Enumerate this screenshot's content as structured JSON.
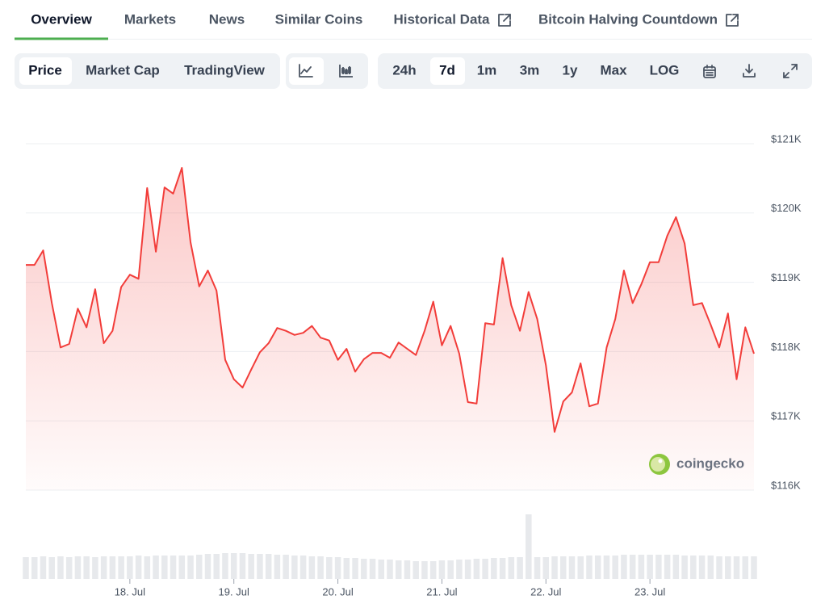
{
  "tabs": [
    "Overview",
    "Markets",
    "News",
    "Similar Coins",
    "Historical Data",
    "Bitcoin Halving Countdown"
  ],
  "view_buttons": [
    "Price",
    "Market Cap",
    "TradingView"
  ],
  "range_buttons": [
    "24h",
    "7d",
    "1m",
    "3m",
    "1y",
    "Max",
    "LOG"
  ],
  "watermark": "coingecko",
  "chart_data": {
    "type": "line",
    "color": "#f23d3a",
    "fill": true,
    "grid": true,
    "categories": [
      null,
      null,
      null,
      null,
      null,
      null,
      null,
      null,
      null,
      null,
      null,
      null,
      "18. Jul",
      null,
      null,
      null,
      null,
      null,
      null,
      null,
      null,
      null,
      null,
      null,
      "19. Jul",
      null,
      null,
      null,
      null,
      null,
      null,
      null,
      null,
      null,
      null,
      null,
      "20. Jul",
      null,
      null,
      null,
      null,
      null,
      null,
      null,
      null,
      null,
      null,
      null,
      "21. Jul",
      null,
      null,
      null,
      null,
      null,
      null,
      null,
      null,
      null,
      null,
      null,
      "22. Jul",
      null,
      null,
      null,
      null,
      null,
      null,
      null,
      null,
      null,
      null,
      null,
      "23. Jul",
      null,
      null,
      null,
      null,
      null,
      null,
      null,
      null,
      null,
      null,
      null,
      null
    ],
    "values": [
      119250,
      119250,
      119460,
      118700,
      118060,
      118110,
      118620,
      118350,
      118900,
      118120,
      118300,
      118930,
      119110,
      119050,
      120360,
      119440,
      120370,
      120280,
      120650,
      119580,
      118940,
      119170,
      118880,
      117880,
      117600,
      117480,
      117740,
      117990,
      118120,
      118340,
      118300,
      118240,
      118270,
      118370,
      118200,
      118160,
      117880,
      118040,
      117710,
      117890,
      117980,
      117980,
      117910,
      118130,
      118040,
      117950,
      118300,
      118720,
      118090,
      118370,
      117970,
      117270,
      117250,
      118410,
      118390,
      119350,
      118670,
      118300,
      118860,
      118470,
      117800,
      116840,
      117280,
      117410,
      117830,
      117210,
      117250,
      118060,
      118470,
      119170,
      118700,
      118970,
      119290,
      119290,
      119670,
      119940,
      119560,
      118670,
      118700,
      118390,
      118060,
      118550,
      117600,
      118350,
      117970
    ],
    "volume": [
      27,
      27,
      28,
      27,
      28,
      27,
      28,
      28,
      27,
      28,
      28,
      28,
      28,
      29,
      28,
      29,
      29,
      29,
      29,
      29,
      30,
      31,
      31,
      32,
      32,
      32,
      31,
      31,
      31,
      30,
      30,
      29,
      29,
      28,
      28,
      27,
      27,
      26,
      26,
      25,
      25,
      24,
      24,
      23,
      23,
      22,
      22,
      22,
      23,
      23,
      24,
      24,
      25,
      25,
      26,
      26,
      27,
      27,
      80,
      27,
      27,
      28,
      28,
      28,
      28,
      29,
      29,
      29,
      29,
      30,
      30,
      30,
      30,
      30,
      30,
      30,
      29,
      29,
      29,
      29,
      28,
      28,
      28,
      28,
      28
    ],
    "volume_color": "#e7e9ec",
    "ylim": [
      116000,
      121000
    ],
    "yticks": [
      {
        "value": 116000,
        "label": "$116K"
      },
      {
        "value": 117000,
        "label": "$117K"
      },
      {
        "value": 118000,
        "label": "$118K"
      },
      {
        "value": 119000,
        "label": "$119K"
      },
      {
        "value": 120000,
        "label": "$120K"
      },
      {
        "value": 121000,
        "label": "$121K"
      }
    ]
  }
}
